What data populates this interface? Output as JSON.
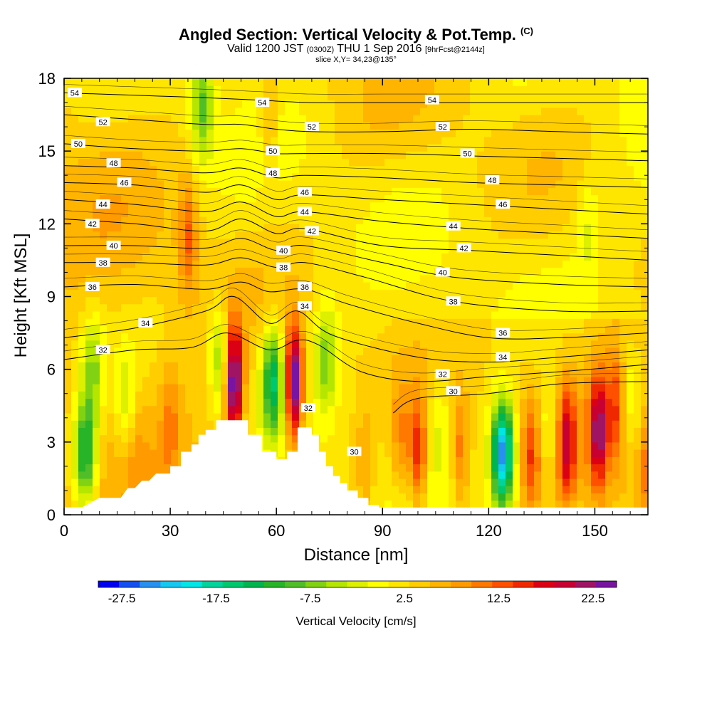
{
  "title": {
    "main": "Angled Section: Vertical Velocity & Pot.Temp.",
    "tag": "(C)"
  },
  "subtitle": {
    "valid": "Valid 1200 JST",
    "utc": "(0300Z)",
    "date": "THU 1 Sep 2016",
    "forecast": "[9hrFcst@2144z]"
  },
  "slice_info": "slice X,Y= 34,23@135°",
  "chart_data": {
    "type": "heatmap",
    "xlabel": "Distance [nm]",
    "ylabel": "Height [Kft MSL]",
    "xlim": [
      0,
      165
    ],
    "ylim": [
      0,
      18
    ],
    "x_ticks": [
      0,
      30,
      60,
      90,
      120,
      150
    ],
    "y_ticks": [
      0,
      3,
      6,
      9,
      12,
      15,
      18
    ],
    "colorbar": {
      "label": "Vertical Velocity [cm/s]",
      "tick_labels": [
        "-27.5",
        "-17.5",
        "-7.5",
        "2.5",
        "12.5",
        "22.5"
      ],
      "tick_values": [
        -27.5,
        -17.5,
        -7.5,
        2.5,
        12.5,
        22.5
      ],
      "bounds": [
        -30,
        25
      ],
      "colors": [
        "#0000f0",
        "#1450f0",
        "#2890f0",
        "#14c8f0",
        "#00e6e6",
        "#00d49c",
        "#00c86e",
        "#00b450",
        "#28b428",
        "#50be28",
        "#82d214",
        "#b4e600",
        "#dcf000",
        "#ffff00",
        "#ffe600",
        "#ffcd00",
        "#ffb400",
        "#ff9b00",
        "#ff7800",
        "#ff5000",
        "#f02800",
        "#dc0014",
        "#c80032",
        "#a01464",
        "#7814a0"
      ]
    },
    "terrain": [
      [
        0,
        0.3
      ],
      [
        5,
        0.3
      ],
      [
        10,
        0.7
      ],
      [
        16,
        0.7
      ],
      [
        18,
        1.1
      ],
      [
        20,
        1.1
      ],
      [
        22,
        1.4
      ],
      [
        24,
        1.4
      ],
      [
        26,
        1.7
      ],
      [
        30,
        1.7
      ],
      [
        30,
        2.0
      ],
      [
        33,
        2.0
      ],
      [
        33,
        2.6
      ],
      [
        36,
        2.6
      ],
      [
        36,
        2.9
      ],
      [
        38,
        2.9
      ],
      [
        38,
        3.3
      ],
      [
        40,
        3.3
      ],
      [
        40,
        3.5
      ],
      [
        43,
        3.5
      ],
      [
        43,
        3.9
      ],
      [
        48,
        3.9
      ],
      [
        48,
        3.9
      ],
      [
        52,
        3.9
      ],
      [
        52,
        3.3
      ],
      [
        56,
        3.3
      ],
      [
        56,
        2.6
      ],
      [
        60,
        2.6
      ],
      [
        60,
        2.3
      ],
      [
        63,
        2.3
      ],
      [
        63,
        2.6
      ],
      [
        66,
        2.6
      ],
      [
        66,
        3.6
      ],
      [
        70,
        3.6
      ],
      [
        70,
        3.3
      ],
      [
        72,
        3.3
      ],
      [
        72,
        2.6
      ],
      [
        74,
        2.6
      ],
      [
        74,
        2.0
      ],
      [
        76,
        2.0
      ],
      [
        76,
        1.6
      ],
      [
        78,
        1.6
      ],
      [
        78,
        1.3
      ],
      [
        80,
        1.3
      ],
      [
        80,
        1.0
      ],
      [
        83,
        1.0
      ],
      [
        83,
        0.7
      ],
      [
        86,
        0.7
      ],
      [
        86,
        0.4
      ],
      [
        89,
        0.4
      ],
      [
        89,
        0.15
      ],
      [
        93,
        0.15
      ],
      [
        93,
        0
      ]
    ],
    "updrafts": [
      {
        "x": 48,
        "y": 5.5,
        "w": 24
      },
      {
        "x": 65,
        "y": 5.4,
        "w": 25
      },
      {
        "x": 100,
        "y": 2.5,
        "w": 14
      },
      {
        "x": 151,
        "y": 3.5,
        "w": 17
      },
      {
        "x": 142,
        "y": 3.0,
        "w": 14
      },
      {
        "x": 112,
        "y": 2.5,
        "w": 9
      },
      {
        "x": 132,
        "y": 2.5,
        "w": 9
      },
      {
        "x": 95,
        "y": 3.0,
        "w": 7
      },
      {
        "x": 85,
        "y": 2.0,
        "w": 5
      },
      {
        "x": 35,
        "y": 11.5,
        "w": 9
      },
      {
        "x": 58,
        "y": 16.0,
        "w": 5
      },
      {
        "x": 156,
        "y": 4.5,
        "w": 9
      },
      {
        "x": 30,
        "y": 4.0,
        "w": 5
      },
      {
        "x": 20,
        "y": 3.5,
        "w": 4
      },
      {
        "x": 165,
        "y": 2.0,
        "w": 7
      }
    ],
    "downdrafts": [
      {
        "x": 124,
        "y": 2.5,
        "w": -28
      },
      {
        "x": 6,
        "y": 2.5,
        "w": -18
      },
      {
        "x": 59,
        "y": 5.5,
        "w": -17
      },
      {
        "x": 39,
        "y": 17.0,
        "w": -11
      },
      {
        "x": 44,
        "y": 6.5,
        "w": -10
      },
      {
        "x": 18,
        "y": 4.5,
        "w": -8
      },
      {
        "x": 74,
        "y": 6.5,
        "w": -9
      },
      {
        "x": 8,
        "y": 6.0,
        "w": -9
      },
      {
        "x": 137,
        "y": 3.5,
        "w": -7
      },
      {
        "x": 160,
        "y": 5.0,
        "w": -6
      },
      {
        "x": 148,
        "y": 12.0,
        "w": -4
      },
      {
        "x": 106,
        "y": 4.0,
        "w": -4
      }
    ],
    "theta_contours": [
      {
        "value": 30,
        "label": "30",
        "points": [
          [
            93,
            4.2
          ],
          [
            100,
            4.8
          ],
          [
            120,
            5.0
          ],
          [
            140,
            5.4
          ],
          [
            165,
            5.5
          ]
        ]
      },
      {
        "value": 32,
        "label": "32",
        "points": [
          [
            0,
            6.4
          ],
          [
            20,
            6.8
          ],
          [
            36,
            6.9
          ],
          [
            46,
            7.5
          ],
          [
            58,
            6.8
          ],
          [
            66,
            7.2
          ],
          [
            72,
            7.0
          ],
          [
            84,
            5.9
          ],
          [
            100,
            5.5
          ],
          [
            120,
            5.7
          ],
          [
            140,
            5.9
          ],
          [
            165,
            6.2
          ]
        ]
      },
      {
        "value": 34,
        "label": "34",
        "points": [
          [
            0,
            7.3
          ],
          [
            20,
            7.7
          ],
          [
            40,
            8.4
          ],
          [
            48,
            9.0
          ],
          [
            58,
            7.9
          ],
          [
            66,
            8.4
          ],
          [
            76,
            7.4
          ],
          [
            100,
            6.5
          ],
          [
            120,
            6.3
          ],
          [
            140,
            6.5
          ],
          [
            165,
            6.8
          ]
        ]
      },
      {
        "value": 36,
        "label": "36",
        "points": [
          [
            0,
            9.4
          ],
          [
            20,
            9.5
          ],
          [
            40,
            9.3
          ],
          [
            50,
            9.6
          ],
          [
            58,
            9.2
          ],
          [
            68,
            9.3
          ],
          [
            80,
            8.7
          ],
          [
            100,
            7.9
          ],
          [
            120,
            7.3
          ],
          [
            140,
            7.3
          ],
          [
            165,
            7.5
          ]
        ]
      },
      {
        "value": 38,
        "label": "38",
        "points": [
          [
            0,
            10.4
          ],
          [
            20,
            10.4
          ],
          [
            40,
            10.3
          ],
          [
            50,
            10.6
          ],
          [
            60,
            10.2
          ],
          [
            68,
            10.4
          ],
          [
            85,
            9.8
          ],
          [
            110,
            8.8
          ],
          [
            140,
            8.4
          ],
          [
            165,
            8.4
          ]
        ]
      },
      {
        "value": 40,
        "label": "40",
        "points": [
          [
            0,
            11.1
          ],
          [
            20,
            11.1
          ],
          [
            40,
            11.0
          ],
          [
            50,
            11.4
          ],
          [
            60,
            10.9
          ],
          [
            68,
            11.1
          ],
          [
            90,
            10.4
          ],
          [
            110,
            9.8
          ],
          [
            140,
            9.5
          ],
          [
            165,
            9.4
          ]
        ]
      },
      {
        "value": 42,
        "label": "42",
        "points": [
          [
            0,
            12.2
          ],
          [
            20,
            12.0
          ],
          [
            40,
            11.7
          ],
          [
            50,
            12.2
          ],
          [
            60,
            11.6
          ],
          [
            68,
            11.8
          ],
          [
            90,
            11.1
          ],
          [
            115,
            10.9
          ],
          [
            140,
            10.7
          ],
          [
            165,
            10.5
          ]
        ]
      },
      {
        "value": 44,
        "label": "44",
        "points": [
          [
            0,
            13.0
          ],
          [
            20,
            12.8
          ],
          [
            40,
            12.5
          ],
          [
            50,
            12.9
          ],
          [
            60,
            12.3
          ],
          [
            68,
            12.5
          ],
          [
            90,
            12.1
          ],
          [
            115,
            11.8
          ],
          [
            140,
            11.6
          ],
          [
            165,
            11.4
          ]
        ]
      },
      {
        "value": 46,
        "label": "46",
        "points": [
          [
            0,
            13.7
          ],
          [
            20,
            13.6
          ],
          [
            40,
            13.3
          ],
          [
            50,
            13.6
          ],
          [
            60,
            13.0
          ],
          [
            68,
            13.2
          ],
          [
            90,
            13.0
          ],
          [
            115,
            12.8
          ],
          [
            140,
            12.6
          ],
          [
            165,
            12.4
          ]
        ]
      },
      {
        "value": 48,
        "label": "48",
        "points": [
          [
            0,
            14.4
          ],
          [
            20,
            14.3
          ],
          [
            40,
            14.1
          ],
          [
            50,
            14.3
          ],
          [
            60,
            13.9
          ],
          [
            68,
            14.0
          ],
          [
            90,
            13.9
          ],
          [
            115,
            13.7
          ],
          [
            140,
            13.6
          ],
          [
            165,
            13.5
          ]
        ]
      },
      {
        "value": 50,
        "label": "50",
        "points": [
          [
            0,
            15.3
          ],
          [
            20,
            15.1
          ],
          [
            40,
            15.0
          ],
          [
            50,
            15.1
          ],
          [
            60,
            14.9
          ],
          [
            68,
            14.9
          ],
          [
            90,
            14.9
          ],
          [
            115,
            14.8
          ],
          [
            140,
            14.7
          ],
          [
            165,
            14.6
          ]
        ]
      },
      {
        "value": 52,
        "label": "52",
        "points": [
          [
            0,
            16.5
          ],
          [
            20,
            16.3
          ],
          [
            40,
            16.1
          ],
          [
            50,
            16.1
          ],
          [
            60,
            15.9
          ],
          [
            70,
            15.8
          ],
          [
            90,
            15.8
          ],
          [
            115,
            15.9
          ],
          [
            140,
            15.8
          ],
          [
            165,
            15.7
          ]
        ]
      },
      {
        "value": 54,
        "label": "54",
        "points": [
          [
            0,
            17.4
          ],
          [
            20,
            17.3
          ],
          [
            40,
            17.2
          ],
          [
            55,
            17.1
          ],
          [
            70,
            17.0
          ],
          [
            90,
            17.0
          ],
          [
            115,
            17.0
          ],
          [
            140,
            17.0
          ],
          [
            165,
            17.0
          ]
        ]
      }
    ],
    "contour_labels": [
      {
        "text": "54",
        "x": 3,
        "y": 17.4
      },
      {
        "text": "52",
        "x": 11,
        "y": 16.2
      },
      {
        "text": "50",
        "x": 4,
        "y": 15.3
      },
      {
        "text": "48",
        "x": 14,
        "y": 14.5
      },
      {
        "text": "46",
        "x": 17,
        "y": 13.7
      },
      {
        "text": "44",
        "x": 11,
        "y": 12.8
      },
      {
        "text": "42",
        "x": 8,
        "y": 12.0
      },
      {
        "text": "40",
        "x": 14,
        "y": 11.1
      },
      {
        "text": "38",
        "x": 11,
        "y": 10.4
      },
      {
        "text": "36",
        "x": 8,
        "y": 9.4
      },
      {
        "text": "34",
        "x": 23,
        "y": 7.9
      },
      {
        "text": "32",
        "x": 11,
        "y": 6.8
      },
      {
        "text": "54",
        "x": 56,
        "y": 17.0
      },
      {
        "text": "52",
        "x": 70,
        "y": 16.0
      },
      {
        "text": "50",
        "x": 59,
        "y": 15.0
      },
      {
        "text": "48",
        "x": 59,
        "y": 14.1
      },
      {
        "text": "46",
        "x": 68,
        "y": 13.3
      },
      {
        "text": "44",
        "x": 68,
        "y": 12.5
      },
      {
        "text": "42",
        "x": 70,
        "y": 11.7
      },
      {
        "text": "40",
        "x": 62,
        "y": 10.9
      },
      {
        "text": "38",
        "x": 62,
        "y": 10.2
      },
      {
        "text": "36",
        "x": 68,
        "y": 9.4
      },
      {
        "text": "34",
        "x": 68,
        "y": 8.6
      },
      {
        "text": "32",
        "x": 69,
        "y": 4.4
      },
      {
        "text": "30",
        "x": 82,
        "y": 2.6
      },
      {
        "text": "54",
        "x": 104,
        "y": 17.1
      },
      {
        "text": "52",
        "x": 107,
        "y": 16.0
      },
      {
        "text": "50",
        "x": 114,
        "y": 14.9
      },
      {
        "text": "48",
        "x": 121,
        "y": 13.8
      },
      {
        "text": "46",
        "x": 124,
        "y": 12.8
      },
      {
        "text": "44",
        "x": 110,
        "y": 11.9
      },
      {
        "text": "42",
        "x": 113,
        "y": 11.0
      },
      {
        "text": "40",
        "x": 107,
        "y": 10.0
      },
      {
        "text": "38",
        "x": 110,
        "y": 8.8
      },
      {
        "text": "36",
        "x": 124,
        "y": 7.5
      },
      {
        "text": "34",
        "x": 124,
        "y": 6.5
      },
      {
        "text": "32",
        "x": 107,
        "y": 5.8
      },
      {
        "text": "30",
        "x": 110,
        "y": 5.1
      }
    ]
  }
}
